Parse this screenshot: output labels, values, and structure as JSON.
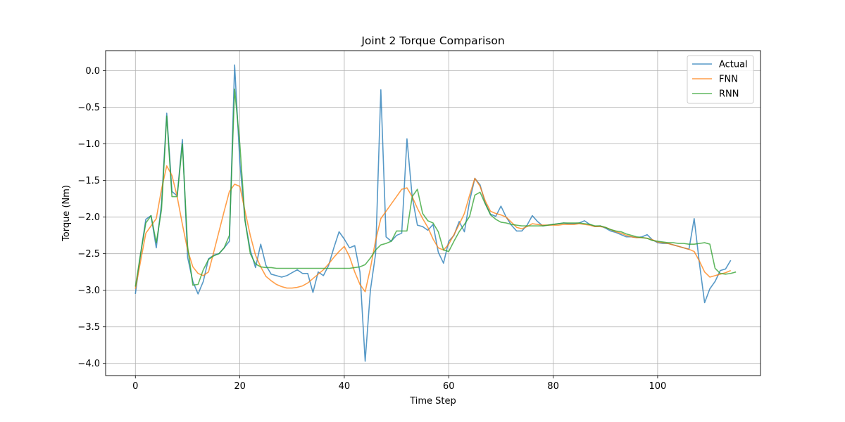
{
  "chart_data": {
    "type": "line",
    "title": "Joint 2 Torque Comparison",
    "xlabel": "Time Step",
    "ylabel": "Torque (Nm)",
    "xlim": [
      -5.7,
      119.7
    ],
    "ylim": [
      -4.166,
      0.275
    ],
    "xticks": [
      0,
      20,
      40,
      60,
      80,
      100
    ],
    "yticks": [
      0.0,
      -0.5,
      -1.0,
      -1.5,
      -2.0,
      -2.5,
      -3.0,
      -3.5,
      -4.0
    ],
    "xtick_labels": [
      "0",
      "20",
      "40",
      "60",
      "80",
      "100"
    ],
    "ytick_labels": [
      "0.0",
      "−0.5",
      "−1.0",
      "−1.5",
      "−2.0",
      "−2.5",
      "−3.0",
      "−3.5",
      "−4.0"
    ],
    "grid": true,
    "legend_position": "top-right",
    "series": [
      {
        "name": "Actual",
        "color": "#1f77b4",
        "x_start": 0,
        "values": [
          -3.05,
          -2.5,
          -2.03,
          -1.98,
          -2.42,
          -1.82,
          -0.58,
          -1.65,
          -1.71,
          -0.94,
          -2.55,
          -2.88,
          -3.05,
          -2.88,
          -2.57,
          -2.52,
          -2.5,
          -2.42,
          -2.33,
          0.08,
          -1.25,
          -2.05,
          -2.45,
          -2.69,
          -2.37,
          -2.66,
          -2.78,
          -2.8,
          -2.82,
          -2.8,
          -2.76,
          -2.72,
          -2.77,
          -2.77,
          -3.03,
          -2.75,
          -2.8,
          -2.66,
          -2.42,
          -2.2,
          -2.3,
          -2.42,
          -2.39,
          -2.75,
          -3.97,
          -3.0,
          -2.5,
          -0.26,
          -2.27,
          -2.33,
          -2.25,
          -2.22,
          -0.93,
          -1.72,
          -2.11,
          -2.13,
          -2.18,
          -2.1,
          -2.48,
          -2.63,
          -2.33,
          -2.25,
          -2.06,
          -2.2,
          -1.78,
          -1.47,
          -1.56,
          -1.81,
          -1.96,
          -1.99,
          -1.85,
          -2.0,
          -2.11,
          -2.19,
          -2.19,
          -2.11,
          -1.98,
          -2.06,
          -2.12,
          -2.11,
          -2.1,
          -2.09,
          -2.08,
          -2.09,
          -2.09,
          -2.08,
          -2.05,
          -2.1,
          -2.13,
          -2.12,
          -2.15,
          -2.19,
          -2.21,
          -2.24,
          -2.27,
          -2.27,
          -2.28,
          -2.27,
          -2.24,
          -2.31,
          -2.35,
          -2.36,
          -2.36,
          -2.38,
          -2.4,
          -2.42,
          -2.44,
          -2.02,
          -2.63,
          -3.17,
          -2.98,
          -2.88,
          -2.73,
          -2.71,
          -2.59
        ]
      },
      {
        "name": "FNN",
        "color": "#ff7f0e",
        "x_start": 0,
        "values": [
          -2.98,
          -2.6,
          -2.22,
          -2.12,
          -2.02,
          -1.62,
          -1.3,
          -1.43,
          -1.72,
          -2.1,
          -2.45,
          -2.68,
          -2.77,
          -2.8,
          -2.75,
          -2.48,
          -2.2,
          -1.92,
          -1.65,
          -1.55,
          -1.58,
          -1.92,
          -2.25,
          -2.52,
          -2.68,
          -2.81,
          -2.87,
          -2.92,
          -2.95,
          -2.97,
          -2.97,
          -2.96,
          -2.94,
          -2.9,
          -2.84,
          -2.78,
          -2.72,
          -2.64,
          -2.55,
          -2.47,
          -2.4,
          -2.54,
          -2.75,
          -2.92,
          -3.02,
          -2.7,
          -2.32,
          -2.02,
          -1.92,
          -1.82,
          -1.72,
          -1.62,
          -1.6,
          -1.72,
          -1.88,
          -2.02,
          -2.14,
          -2.3,
          -2.42,
          -2.45,
          -2.37,
          -2.24,
          -2.1,
          -1.95,
          -1.7,
          -1.47,
          -1.58,
          -1.78,
          -1.92,
          -1.95,
          -1.97,
          -2.0,
          -2.07,
          -2.14,
          -2.16,
          -2.13,
          -2.09,
          -2.1,
          -2.11,
          -2.11,
          -2.11,
          -2.11,
          -2.1,
          -2.1,
          -2.1,
          -2.09,
          -2.1,
          -2.11,
          -2.13,
          -2.13,
          -2.14,
          -2.17,
          -2.2,
          -2.22,
          -2.25,
          -2.27,
          -2.28,
          -2.28,
          -2.29,
          -2.31,
          -2.34,
          -2.35,
          -2.36,
          -2.38,
          -2.4,
          -2.42,
          -2.44,
          -2.47,
          -2.6,
          -2.75,
          -2.82,
          -2.8,
          -2.78,
          -2.76,
          -2.73
        ]
      },
      {
        "name": "RNN",
        "color": "#2ca02c",
        "x_start": 0,
        "values": [
          -2.95,
          -2.5,
          -2.08,
          -1.98,
          -2.35,
          -1.9,
          -0.62,
          -1.72,
          -1.72,
          -1.0,
          -2.4,
          -2.93,
          -2.92,
          -2.72,
          -2.58,
          -2.53,
          -2.5,
          -2.42,
          -2.25,
          -0.25,
          -1.0,
          -2.05,
          -2.5,
          -2.64,
          -2.68,
          -2.69,
          -2.69,
          -2.7,
          -2.7,
          -2.7,
          -2.7,
          -2.7,
          -2.7,
          -2.7,
          -2.7,
          -2.7,
          -2.7,
          -2.7,
          -2.7,
          -2.7,
          -2.7,
          -2.7,
          -2.69,
          -2.68,
          -2.65,
          -2.56,
          -2.45,
          -2.38,
          -2.36,
          -2.33,
          -2.19,
          -2.19,
          -2.19,
          -1.72,
          -1.62,
          -1.95,
          -2.05,
          -2.08,
          -2.2,
          -2.45,
          -2.47,
          -2.33,
          -2.2,
          -2.1,
          -1.99,
          -1.7,
          -1.66,
          -1.82,
          -1.97,
          -2.03,
          -2.07,
          -2.08,
          -2.1,
          -2.11,
          -2.12,
          -2.12,
          -2.12,
          -2.12,
          -2.12,
          -2.11,
          -2.1,
          -2.09,
          -2.08,
          -2.08,
          -2.08,
          -2.08,
          -2.09,
          -2.1,
          -2.12,
          -2.12,
          -2.14,
          -2.17,
          -2.19,
          -2.2,
          -2.23,
          -2.25,
          -2.27,
          -2.28,
          -2.29,
          -2.32,
          -2.33,
          -2.34,
          -2.35,
          -2.35,
          -2.36,
          -2.36,
          -2.37,
          -2.37,
          -2.36,
          -2.35,
          -2.37,
          -2.7,
          -2.77,
          -2.78,
          -2.77,
          -2.75
        ]
      }
    ]
  }
}
